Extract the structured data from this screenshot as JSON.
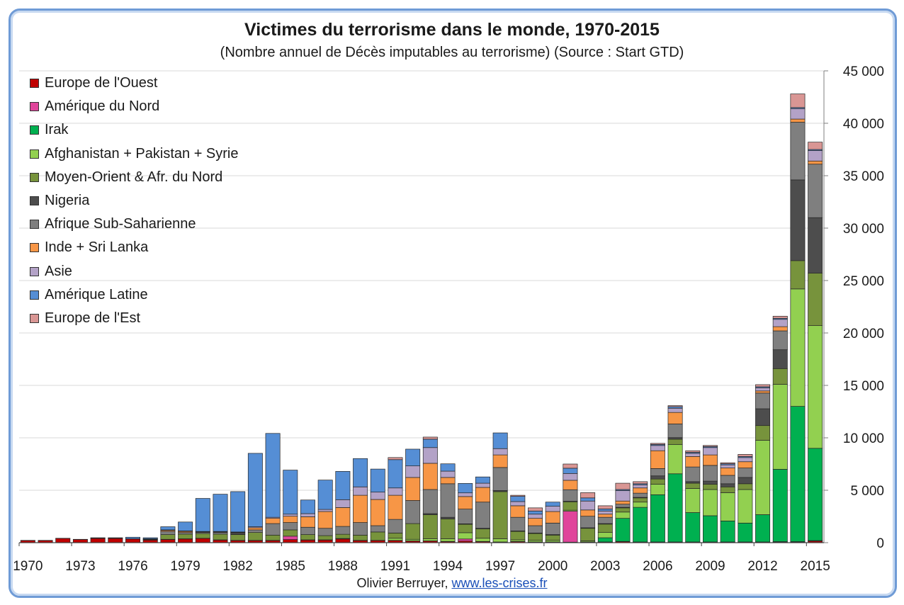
{
  "chart_data": {
    "type": "bar",
    "stacked": true,
    "title": "Victimes du terrorisme dans le monde, 1970-2015",
    "subtitle": "(Nombre annuel de Décès imputables au terrorisme) (Source : Start GTD)",
    "x": [
      1970,
      1971,
      1972,
      1973,
      1974,
      1975,
      1976,
      1977,
      1978,
      1979,
      1980,
      1981,
      1982,
      1983,
      1984,
      1985,
      1986,
      1987,
      1988,
      1989,
      1990,
      1991,
      1992,
      1993,
      1994,
      1995,
      1996,
      1997,
      1998,
      1999,
      2000,
      2001,
      2002,
      2003,
      2004,
      2005,
      2006,
      2007,
      2008,
      2009,
      2010,
      2011,
      2012,
      2013,
      2014,
      2015
    ],
    "x_tick_labels": [
      "1970",
      "1973",
      "1976",
      "1979",
      "1982",
      "1985",
      "1988",
      "1991",
      "1994",
      "1997",
      "2000",
      "2003",
      "2006",
      "2009",
      "2012",
      "2015"
    ],
    "y_tick_labels": [
      "0",
      "5 000",
      "10 000",
      "15 000",
      "20 000",
      "25 000",
      "30 000",
      "35 000",
      "40 000",
      "45 000"
    ],
    "ylim": [
      0,
      45000
    ],
    "ytick_step": 5000,
    "y_axis_position": "right",
    "legend_position": "top-left",
    "grid": true,
    "series": [
      {
        "name": "Europe de l'Ouest",
        "color": "#c00000",
        "values": [
          200,
          200,
          400,
          300,
          400,
          400,
          350,
          250,
          300,
          350,
          400,
          250,
          200,
          200,
          200,
          300,
          250,
          250,
          350,
          200,
          200,
          200,
          150,
          150,
          100,
          150,
          100,
          50,
          100,
          50,
          50,
          50,
          50,
          50,
          100,
          50,
          50,
          50,
          50,
          50,
          50,
          50,
          50,
          50,
          50,
          150
        ]
      },
      {
        "name": "Amérique du Nord",
        "color": "#e0459b",
        "values": [
          20,
          20,
          20,
          20,
          20,
          20,
          20,
          20,
          20,
          20,
          20,
          20,
          20,
          20,
          20,
          320,
          20,
          20,
          50,
          20,
          20,
          20,
          20,
          20,
          20,
          200,
          20,
          20,
          20,
          20,
          20,
          2950,
          20,
          20,
          20,
          20,
          20,
          20,
          20,
          20,
          20,
          20,
          20,
          50,
          50,
          50
        ]
      },
      {
        "name": "Irak",
        "color": "#00b050",
        "values": [
          0,
          0,
          0,
          0,
          0,
          0,
          0,
          0,
          0,
          0,
          0,
          0,
          0,
          0,
          0,
          0,
          0,
          0,
          0,
          0,
          0,
          0,
          0,
          0,
          0,
          0,
          0,
          0,
          0,
          0,
          0,
          0,
          0,
          400,
          2200,
          3300,
          4500,
          6500,
          2800,
          2500,
          2000,
          1800,
          2600,
          6900,
          12900,
          8800
        ]
      },
      {
        "name": "Afghanistan + Pakistan + Syrie",
        "color": "#92d050",
        "values": [
          0,
          0,
          0,
          0,
          0,
          0,
          0,
          0,
          0,
          0,
          0,
          0,
          0,
          0,
          0,
          0,
          0,
          0,
          0,
          0,
          0,
          200,
          150,
          200,
          250,
          600,
          300,
          300,
          150,
          150,
          150,
          100,
          100,
          500,
          600,
          500,
          1000,
          2800,
          2300,
          2500,
          2700,
          3200,
          7100,
          8100,
          11200,
          11700
        ]
      },
      {
        "name": "Moyen-Orient & Afr. du Nord",
        "color": "#77933c",
        "values": [
          0,
          0,
          0,
          0,
          0,
          0,
          0,
          50,
          450,
          450,
          450,
          550,
          550,
          750,
          500,
          600,
          500,
          400,
          400,
          500,
          800,
          500,
          1500,
          2300,
          1900,
          800,
          900,
          4500,
          800,
          650,
          500,
          800,
          1200,
          800,
          400,
          400,
          500,
          500,
          500,
          500,
          550,
          550,
          1400,
          1500,
          2700,
          5000
        ]
      },
      {
        "name": "Nigeria",
        "color": "#4d4d4d",
        "values": [
          0,
          0,
          0,
          0,
          0,
          0,
          0,
          0,
          0,
          0,
          0,
          0,
          50,
          0,
          0,
          0,
          0,
          0,
          0,
          0,
          0,
          0,
          0,
          100,
          150,
          50,
          50,
          100,
          50,
          50,
          50,
          50,
          50,
          50,
          50,
          50,
          300,
          150,
          150,
          300,
          300,
          600,
          1600,
          1800,
          7700,
          5300
        ]
      },
      {
        "name": "Afrique Sub-Saharienne",
        "color": "#7f7f7f",
        "values": [
          0,
          0,
          0,
          0,
          0,
          0,
          0,
          50,
          300,
          150,
          100,
          150,
          100,
          250,
          1100,
          700,
          700,
          700,
          750,
          1200,
          600,
          1300,
          2200,
          2300,
          3200,
          1400,
          2500,
          2200,
          1300,
          700,
          1100,
          1100,
          1100,
          600,
          300,
          400,
          700,
          1300,
          1400,
          1500,
          800,
          900,
          1500,
          1800,
          5500,
          5100
        ]
      },
      {
        "name": "Inde + Sri Lanka",
        "color": "#f79646",
        "values": [
          0,
          0,
          0,
          0,
          0,
          0,
          0,
          0,
          100,
          100,
          50,
          50,
          50,
          200,
          500,
          600,
          1000,
          1600,
          1800,
          2600,
          2500,
          2300,
          2200,
          2500,
          600,
          1200,
          1400,
          1200,
          1100,
          700,
          1100,
          900,
          600,
          300,
          300,
          500,
          1700,
          1100,
          1000,
          1000,
          700,
          600,
          200,
          400,
          300,
          300
        ]
      },
      {
        "name": "Asie",
        "color": "#b3a2c7",
        "values": [
          0,
          0,
          0,
          0,
          0,
          0,
          0,
          0,
          50,
          50,
          50,
          50,
          50,
          100,
          100,
          200,
          300,
          200,
          750,
          800,
          700,
          700,
          1100,
          1500,
          600,
          350,
          400,
          600,
          400,
          400,
          500,
          650,
          850,
          300,
          1000,
          300,
          500,
          400,
          300,
          700,
          300,
          400,
          300,
          700,
          1000,
          1000
        ]
      },
      {
        "name": "Amérique Latine",
        "color": "#558ed5",
        "values": [
          0,
          0,
          0,
          0,
          50,
          50,
          150,
          100,
          300,
          850,
          3150,
          3550,
          3850,
          7000,
          8000,
          4200,
          1300,
          2800,
          2700,
          2700,
          2200,
          2700,
          1600,
          800,
          700,
          900,
          600,
          1500,
          500,
          300,
          400,
          500,
          300,
          200,
          100,
          100,
          100,
          150,
          100,
          100,
          100,
          100,
          100,
          100,
          100,
          100
        ]
      },
      {
        "name": "Europe de l'Est",
        "color": "#d99694",
        "values": [
          0,
          0,
          0,
          0,
          0,
          0,
          0,
          0,
          0,
          0,
          0,
          0,
          0,
          0,
          0,
          0,
          0,
          0,
          0,
          0,
          0,
          200,
          0,
          200,
          0,
          0,
          0,
          0,
          100,
          300,
          0,
          400,
          500,
          300,
          600,
          200,
          100,
          100,
          150,
          100,
          100,
          200,
          200,
          200,
          1300,
          700
        ]
      }
    ]
  },
  "credit": {
    "author": "Olivier Berruyer,",
    "link_text": "www.les-crises.fr"
  }
}
